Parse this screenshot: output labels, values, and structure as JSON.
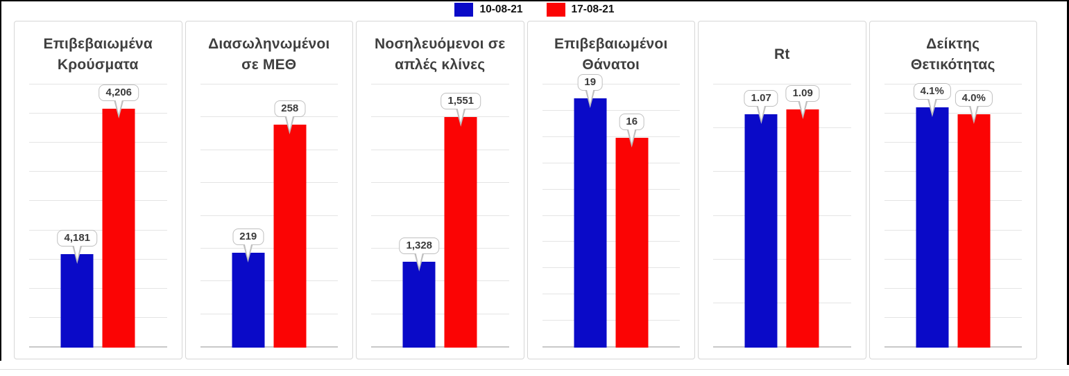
{
  "legend": {
    "items": [
      {
        "label": "10-08-21",
        "color": "#0a0ac8"
      },
      {
        "label": "17-08-21",
        "color": "#fb0404"
      }
    ]
  },
  "chart_data": {
    "type": "bar",
    "layout": "6 small-multiple panels, each comparing two dates",
    "legend_position": "top-center",
    "grid": "horizontal gridlines on, per-panel auto y-scale",
    "panels": [
      {
        "title_lines": [
          "Επιβεβαιωμένα",
          "Κρούσματα"
        ],
        "series": [
          {
            "name": "10-08-21",
            "value": 4181,
            "label": "4,181"
          },
          {
            "name": "17-08-21",
            "value": 4206,
            "label": "4,206"
          }
        ],
        "ylim": [
          4165,
          4210
        ],
        "gridline_intervals": 9
      },
      {
        "title_lines": [
          "Διασωληνωμένοι",
          "σε ΜΕΘ"
        ],
        "series": [
          {
            "name": "10-08-21",
            "value": 219,
            "label": "219"
          },
          {
            "name": "17-08-21",
            "value": 258,
            "label": "258"
          }
        ],
        "ylim": [
          190,
          270
        ],
        "gridline_intervals": 8
      },
      {
        "title_lines": [
          "Νοσηλευόμενοι σε",
          "απλές κλίνες"
        ],
        "series": [
          {
            "name": "10-08-21",
            "value": 1328,
            "label": "1,328"
          },
          {
            "name": "17-08-21",
            "value": 1551,
            "label": "1,551"
          }
        ],
        "ylim": [
          1196,
          1600
        ],
        "gridline_intervals": 8
      },
      {
        "title_lines": [
          "Επιβεβαιωμένοι",
          "Θάνατοι"
        ],
        "series": [
          {
            "name": "10-08-21",
            "value": 19,
            "label": "19"
          },
          {
            "name": "17-08-21",
            "value": 16,
            "label": "16"
          }
        ],
        "ylim": [
          0,
          20
        ],
        "gridline_intervals": 10
      },
      {
        "title_lines": [
          "Rt"
        ],
        "series": [
          {
            "name": "10-08-21",
            "value": 1.07,
            "label": "1.07"
          },
          {
            "name": "17-08-21",
            "value": 1.09,
            "label": "1.09"
          }
        ],
        "ylim": [
          0.1,
          1.19
        ],
        "gridline_intervals": 6
      },
      {
        "title_lines": [
          "Δείκτης",
          "Θετικότητας"
        ],
        "series": [
          {
            "name": "10-08-21",
            "value": 4.1,
            "label": "4.1%"
          },
          {
            "name": "17-08-21",
            "value": 4.0,
            "label": "4.0%"
          }
        ],
        "ylim": [
          0.6,
          4.42
        ],
        "gridline_intervals": 9
      }
    ]
  },
  "colors": {
    "bar_blue": "#0a0ac8",
    "bar_red": "#fb0404",
    "gridline": "#e4e4e4",
    "axis_line": "#c8c8c8",
    "panel_border": "#d6d6d6",
    "title_text": "#3f3f3f",
    "callout_border": "#bfbfbf",
    "frame": "#000000"
  }
}
